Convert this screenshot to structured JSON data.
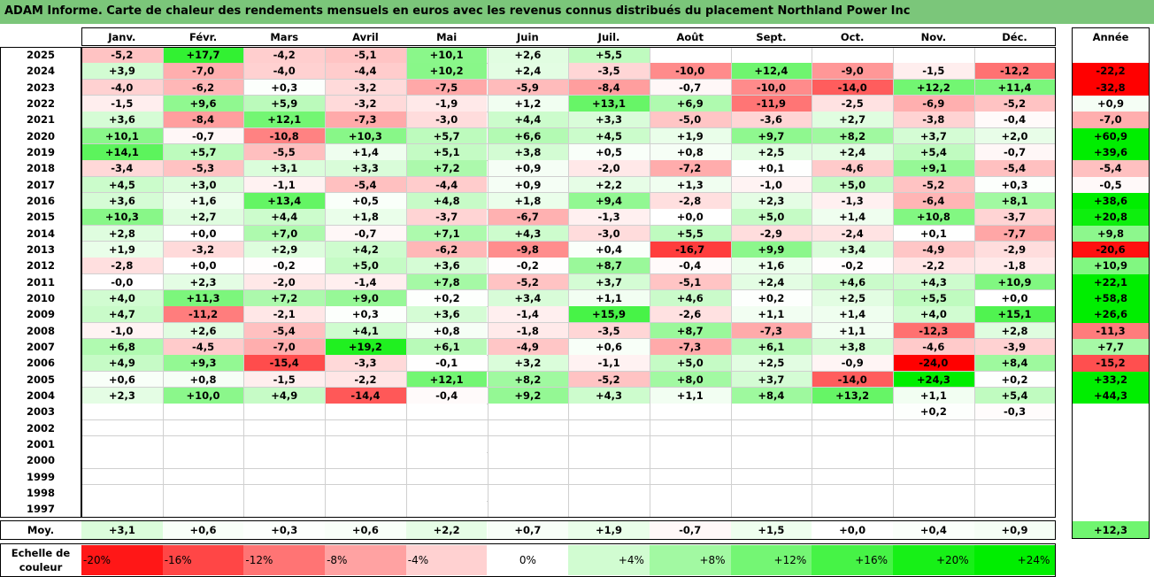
{
  "title": "ADAM Informe. Carte de chaleur des rendements mensuels en euros avec les revenus connus distribués du placement Northland Power Inc",
  "colors": {
    "title_bg": "#7bc67a",
    "positive": "#00ee00",
    "negative": "#ff0000",
    "neutral": "#ffffff"
  },
  "chart_data": {
    "type": "heatmap",
    "months": [
      "Janv.",
      "Févr.",
      "Mars",
      "Avril",
      "Mai",
      "Juin",
      "Juil.",
      "Août",
      "Sept.",
      "Oct.",
      "Nov.",
      "Déc."
    ],
    "year_header": "Année",
    "rows": [
      {
        "year": "2025",
        "months": [
          "-5,2",
          "+17,7",
          "-4,2",
          "-5,1",
          "+10,1",
          "+2,6",
          "+5,5",
          "",
          "",
          "",
          "",
          ""
        ],
        "annual": ""
      },
      {
        "year": "2024",
        "months": [
          "+3,9",
          "-7,0",
          "-4,0",
          "-4,4",
          "+10,2",
          "+2,4",
          "-3,5",
          "-10,0",
          "+12,4",
          "-9,0",
          "-1,5",
          "-12,2"
        ],
        "annual": "-22,2"
      },
      {
        "year": "2023",
        "months": [
          "-4,0",
          "-6,2",
          "+0,3",
          "-3,2",
          "-7,5",
          "-5,9",
          "-8,4",
          "-0,7",
          "-10,0",
          "-14,0",
          "+12,2",
          "+11,4"
        ],
        "annual": "-32,8"
      },
      {
        "year": "2022",
        "months": [
          "-1,5",
          "+9,6",
          "+5,9",
          "-3,2",
          "-1,9",
          "+1,2",
          "+13,1",
          "+6,9",
          "-11,9",
          "-2,5",
          "-6,9",
          "-5,2"
        ],
        "annual": "+0,9"
      },
      {
        "year": "2021",
        "months": [
          "+3,6",
          "-8,4",
          "+12,1",
          "-7,3",
          "-3,0",
          "+4,4",
          "+3,3",
          "-5,0",
          "-3,6",
          "+2,7",
          "-3,8",
          "-0,4"
        ],
        "annual": "-7,0"
      },
      {
        "year": "2020",
        "months": [
          "+10,1",
          "-0,7",
          "-10,8",
          "+10,3",
          "+5,7",
          "+6,6",
          "+4,5",
          "+1,9",
          "+9,7",
          "+8,2",
          "+3,7",
          "+2,0"
        ],
        "annual": "+60,9"
      },
      {
        "year": "2019",
        "months": [
          "+14,1",
          "+5,7",
          "-5,5",
          "+1,4",
          "+5,1",
          "+3,8",
          "+0,5",
          "+0,8",
          "+2,5",
          "+2,4",
          "+5,4",
          "-0,7"
        ],
        "annual": "+39,6"
      },
      {
        "year": "2018",
        "months": [
          "-3,4",
          "-5,3",
          "+3,1",
          "+3,3",
          "+7,2",
          "+0,9",
          "-2,0",
          "-7,2",
          "+0,1",
          "-4,6",
          "+9,1",
          "-5,4"
        ],
        "annual": "-5,4"
      },
      {
        "year": "2017",
        "months": [
          "+4,5",
          "+3,0",
          "-1,1",
          "-5,4",
          "-4,4",
          "+0,9",
          "+2,2",
          "+1,3",
          "-1,0",
          "+5,0",
          "-5,2",
          "+0,3"
        ],
        "annual": "-0,5"
      },
      {
        "year": "2016",
        "months": [
          "+3,6",
          "+1,6",
          "+13,4",
          "+0,5",
          "+4,8",
          "+1,8",
          "+9,4",
          "-2,8",
          "+2,3",
          "-1,3",
          "-6,4",
          "+8,1"
        ],
        "annual": "+38,6"
      },
      {
        "year": "2015",
        "months": [
          "+10,3",
          "+2,7",
          "+4,4",
          "+1,8",
          "-3,7",
          "-6,7",
          "-1,3",
          "+0,0",
          "+5,0",
          "+1,4",
          "+10,8",
          "-3,7"
        ],
        "annual": "+20,8"
      },
      {
        "year": "2014",
        "months": [
          "+2,8",
          "+0,0",
          "+7,0",
          "-0,7",
          "+7,1",
          "+4,3",
          "-3,0",
          "+5,5",
          "-2,9",
          "-2,4",
          "+0,1",
          "-7,7"
        ],
        "annual": "+9,8"
      },
      {
        "year": "2013",
        "months": [
          "+1,9",
          "-3,2",
          "+2,9",
          "+4,2",
          "-6,2",
          "-9,8",
          "+0,4",
          "-16,7",
          "+9,9",
          "+3,4",
          "-4,9",
          "-2,9"
        ],
        "annual": "-20,6"
      },
      {
        "year": "2012",
        "months": [
          "-2,8",
          "+0,0",
          "-0,2",
          "+5,0",
          "+3,6",
          "-0,2",
          "+8,7",
          "-0,4",
          "+1,6",
          "-0,2",
          "-2,2",
          "-1,8"
        ],
        "annual": "+10,9"
      },
      {
        "year": "2011",
        "months": [
          "-0,0",
          "+2,3",
          "-2,0",
          "-1,4",
          "+7,8",
          "-5,2",
          "+3,7",
          "-5,1",
          "+2,4",
          "+4,6",
          "+4,3",
          "+10,9"
        ],
        "annual": "+22,1"
      },
      {
        "year": "2010",
        "months": [
          "+4,0",
          "+11,3",
          "+7,2",
          "+9,0",
          "+0,2",
          "+3,4",
          "+1,1",
          "+4,6",
          "+0,2",
          "+2,5",
          "+5,5",
          "+0,0"
        ],
        "annual": "+58,8"
      },
      {
        "year": "2009",
        "months": [
          "+4,7",
          "-11,2",
          "-2,1",
          "+0,3",
          "+3,6",
          "-1,4",
          "+15,9",
          "-2,6",
          "+1,1",
          "+1,4",
          "+4,0",
          "+15,1"
        ],
        "annual": "+26,6"
      },
      {
        "year": "2008",
        "months": [
          "-1,0",
          "+2,6",
          "-5,4",
          "+4,1",
          "+0,8",
          "-1,8",
          "-3,5",
          "+8,7",
          "-7,3",
          "+1,1",
          "-12,3",
          "+2,8"
        ],
        "annual": "-11,3"
      },
      {
        "year": "2007",
        "months": [
          "+6,8",
          "-4,5",
          "-7,0",
          "+19,2",
          "+6,1",
          "-4,9",
          "+0,6",
          "-7,3",
          "+6,1",
          "+3,8",
          "-4,6",
          "-3,9"
        ],
        "annual": "+7,7"
      },
      {
        "year": "2006",
        "months": [
          "+4,9",
          "+9,3",
          "-15,4",
          "-3,3",
          "-0,1",
          "+3,2",
          "-1,1",
          "+5,0",
          "+2,5",
          "-0,9",
          "-24,0",
          "+8,4"
        ],
        "annual": "-15,2"
      },
      {
        "year": "2005",
        "months": [
          "+0,6",
          "+0,8",
          "-1,5",
          "-2,2",
          "+12,1",
          "+8,2",
          "-5,2",
          "+8,0",
          "+3,7",
          "-14,0",
          "+24,3",
          "+0,2"
        ],
        "annual": "+33,2"
      },
      {
        "year": "2004",
        "months": [
          "+2,3",
          "+10,0",
          "+4,9",
          "-14,4",
          "-0,4",
          "+9,2",
          "+4,3",
          "+1,1",
          "+8,4",
          "+13,2",
          "+1,1",
          "+5,4"
        ],
        "annual": "+44,3"
      },
      {
        "year": "2003",
        "months": [
          "",
          "",
          "",
          "",
          "",
          "",
          "",
          "",
          "",
          "",
          "+0,2",
          "-0,3"
        ],
        "annual": ""
      },
      {
        "year": "2002",
        "months": [
          "",
          "",
          "",
          "",
          "",
          "",
          "",
          "",
          "",
          "",
          "",
          ""
        ],
        "annual": ""
      },
      {
        "year": "2001",
        "months": [
          "",
          "",
          "",
          "",
          "",
          "",
          "",
          "",
          "",
          "",
          "",
          ""
        ],
        "annual": ""
      },
      {
        "year": "2000",
        "months": [
          "",
          "",
          "",
          "",
          "",
          "",
          "",
          "",
          "",
          "",
          "",
          ""
        ],
        "annual": ""
      },
      {
        "year": "1999",
        "months": [
          "",
          "",
          "",
          "",
          "",
          "",
          "",
          "",
          "",
          "",
          "",
          ""
        ],
        "annual": ""
      },
      {
        "year": "1998",
        "months": [
          "",
          "",
          "",
          "",
          "",
          "",
          "",
          "",
          "",
          "",
          "",
          ""
        ],
        "annual": ""
      },
      {
        "year": "1997",
        "months": [
          "",
          "",
          "",
          "",
          "",
          "",
          "",
          "",
          "",
          "",
          "",
          ""
        ],
        "annual": ""
      }
    ],
    "average": {
      "label": "Moy.",
      "months": [
        "+3,1",
        "+0,6",
        "+0,3",
        "+0,6",
        "+2,2",
        "+0,7",
        "+1,9",
        "-0,7",
        "+1,5",
        "+0,0",
        "+0,4",
        "+0,9"
      ],
      "annual": "+12,3"
    },
    "scale": {
      "label_line1": "Echelle de",
      "label_line2": "couleur",
      "steps": [
        {
          "label": "-20%",
          "value": -20
        },
        {
          "label": "-16%",
          "value": -16
        },
        {
          "label": "-12%",
          "value": -12
        },
        {
          "label": "-8%",
          "value": -8
        },
        {
          "label": "-4%",
          "value": -4
        },
        {
          "label": "0%",
          "value": 0
        },
        {
          "label": "+4%",
          "value": 4
        },
        {
          "label": "+8%",
          "value": 8
        },
        {
          "label": "+12%",
          "value": 12
        },
        {
          "label": "+16%",
          "value": 16
        },
        {
          "label": "+20%",
          "value": 20
        },
        {
          "label": "+24%",
          "value": 24
        }
      ]
    }
  }
}
